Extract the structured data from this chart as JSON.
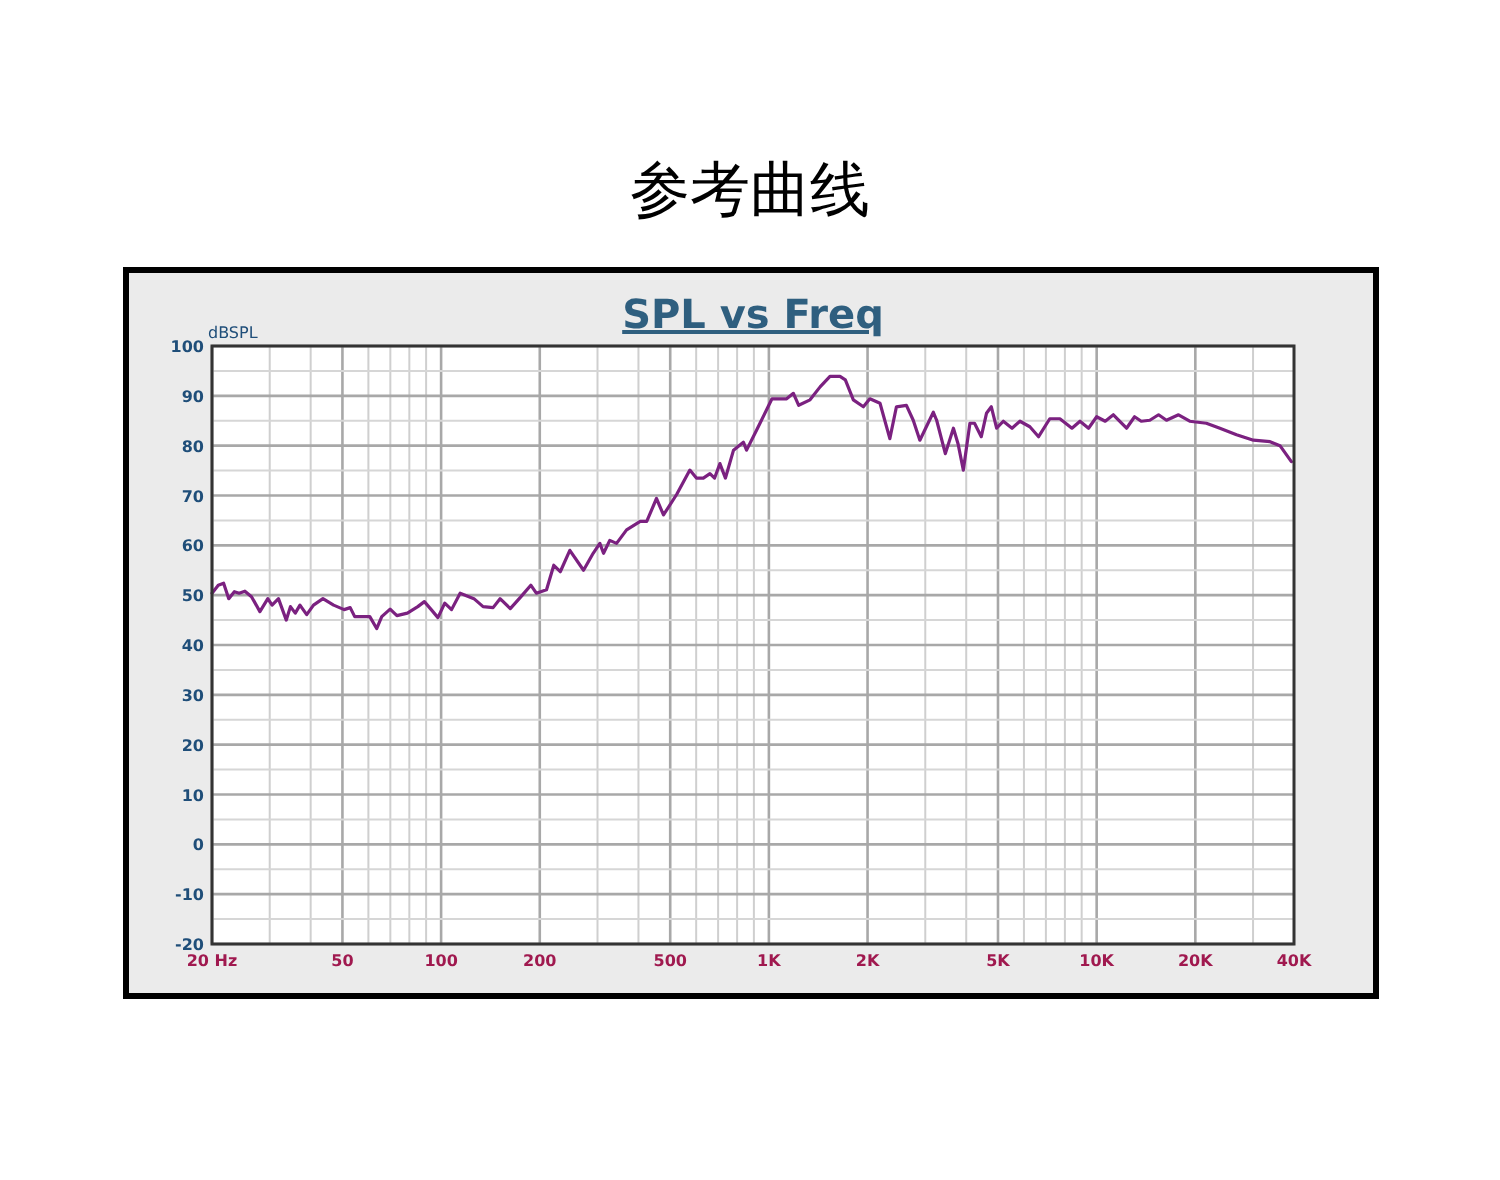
{
  "chart_data": {
    "type": "line",
    "title": "参考曲线",
    "subtitle": "SPL vs Freq",
    "ylabel": "dBSPL",
    "log": "x",
    "grid": true,
    "marker": "none",
    "line_style": "solid",
    "xlim": [
      20,
      40000
    ],
    "ylim": [
      -20,
      100
    ],
    "xticks": [
      {
        "value": 20,
        "label": "20 Hz"
      },
      50,
      100,
      200,
      500,
      {
        "value": 1000,
        "label": "1K"
      },
      {
        "value": 2000,
        "label": "2K"
      },
      {
        "value": 5000,
        "label": "5K"
      },
      {
        "value": 10000,
        "label": "10K"
      },
      {
        "value": 20000,
        "label": "20K"
      },
      {
        "value": 40000,
        "label": "40K"
      }
    ],
    "yticks": [
      -20,
      -10,
      0,
      10,
      20,
      30,
      40,
      50,
      60,
      70,
      80,
      90,
      100
    ],
    "series": [
      {
        "color": "#7b2180",
        "x": [
          20,
          20.9,
          21.7,
          22.5,
          23.4,
          24.2,
          25.2,
          26.4,
          28,
          29.6,
          30.5,
          31.9,
          33.7,
          34.7,
          35.9,
          37.1,
          38.9,
          40.8,
          43.6,
          47,
          50.6,
          52.8,
          54.5,
          58,
          60.6,
          63.6,
          65.9,
          69.9,
          73.3,
          78.9,
          84.9,
          88.9,
          93.3,
          97.8,
          102.6,
          107.6,
          114.3,
          125.9,
          134.3,
          144.1,
          151.3,
          162.6,
          175.3,
          187.8,
          195.2,
          209.7,
          220.7,
          231,
          247,
          272,
          291,
          305,
          313,
          327,
          343,
          368,
          405,
          424,
          454,
          477,
          523,
          574,
          601,
          631,
          661,
          683,
          709,
          737,
          780,
          836,
          855,
          917,
          1022,
          1133,
          1188,
          1233,
          1335,
          1433,
          1536,
          1648,
          1711,
          1810,
          1942,
          2033,
          2183,
          2339,
          2450,
          2628,
          2757,
          2888,
          3175,
          3250,
          3454,
          3656,
          3776,
          3920,
          4105,
          4240,
          4446,
          4612,
          4771,
          4952,
          5190,
          5518,
          5834,
          6255,
          6650,
          7194,
          7723,
          8406,
          8895,
          9446,
          10000,
          10620,
          11246,
          12335,
          13052,
          13677,
          14525,
          15447,
          16330,
          17775,
          19230,
          21615,
          23766,
          26714,
          30073,
          33806,
          36250,
          39266
        ],
        "values": [
          50.4,
          52,
          52.4,
          49.3,
          50.7,
          50.4,
          50.8,
          49.7,
          46.7,
          49.3,
          48,
          49.3,
          45,
          47.7,
          46.4,
          48,
          46.1,
          48,
          49.3,
          48,
          47.1,
          47.5,
          45.7,
          45.7,
          45.7,
          43.3,
          45.7,
          47.2,
          45.9,
          46.4,
          47.7,
          48.7,
          47.1,
          45.5,
          48.4,
          47.1,
          50.4,
          49.3,
          47.7,
          47.5,
          49.3,
          47.3,
          49.7,
          52,
          50.4,
          51.1,
          56,
          54.7,
          59,
          55,
          58.4,
          60.4,
          58.4,
          61,
          60.4,
          63.1,
          64.8,
          64.8,
          69.4,
          66.1,
          70.2,
          75.1,
          73.5,
          73.5,
          74.4,
          73.5,
          76.4,
          73.5,
          79.1,
          80.7,
          79.1,
          83.1,
          89.4,
          89.4,
          90.5,
          88.1,
          89.2,
          91.8,
          93.9,
          93.9,
          93.2,
          89.2,
          87.8,
          89.4,
          88.5,
          81.4,
          87.8,
          88.1,
          85.1,
          81.1,
          86.7,
          85.1,
          78.4,
          83.5,
          80.4,
          75.1,
          84.5,
          84.5,
          81.8,
          86.5,
          87.8,
          83.5,
          84.9,
          83.5,
          84.9,
          83.8,
          81.8,
          85.4,
          85.4,
          83.5,
          84.9,
          83.5,
          85.8,
          84.9,
          86.2,
          83.5,
          85.8,
          84.9,
          85.1,
          86.2,
          85.1,
          86.2,
          84.9,
          84.5,
          83.5,
          82.2,
          81.1,
          80.8,
          80,
          76.8
        ]
      }
    ]
  }
}
